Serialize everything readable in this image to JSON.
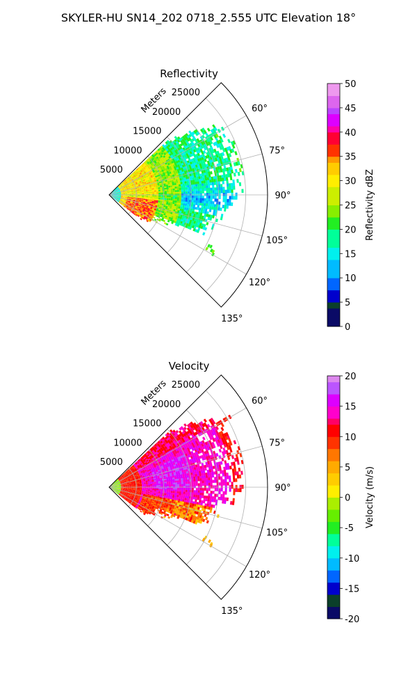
{
  "figure": {
    "title": "SKYLER-HU  SN14_202  0718_2.555 UTC Elevation 18°"
  },
  "chart_data": [
    {
      "type": "heatmap",
      "subtype": "polar-sector (radar PPI)",
      "title": "Reflectivity",
      "radial_label": "Meters",
      "radial_ticks": [
        5000,
        10000,
        15000,
        20000,
        25000
      ],
      "rlim": [
        0,
        29000
      ],
      "angle_ticks": [
        "60°",
        "75°",
        "90°",
        "105°",
        "120°",
        "135°"
      ],
      "theta_range_deg": [
        45,
        135
      ],
      "grid": true,
      "colorbar": {
        "label": "Reflectivity dBZ",
        "range": [
          0,
          50
        ],
        "ticks": [
          0,
          5,
          10,
          15,
          20,
          25,
          30,
          35,
          40,
          45,
          50
        ]
      },
      "field_summary": [
        {
          "range_m": [
            0,
            2000
          ],
          "dominant_dBZ": 15
        },
        {
          "range_m": [
            2000,
            9000
          ],
          "dominant_dBZ": 30
        },
        {
          "range_m": [
            9000,
            13000
          ],
          "dominant_dBZ": 24
        },
        {
          "range_m": [
            13000,
            22000
          ],
          "dominant_dBZ": 18
        },
        {
          "range_m": [
            22000,
            25000
          ],
          "dominant_dBZ": 19
        }
      ]
    },
    {
      "type": "heatmap",
      "subtype": "polar-sector (radar PPI)",
      "title": "Velocity",
      "radial_label": "Meters",
      "radial_ticks": [
        5000,
        10000,
        15000,
        20000,
        25000
      ],
      "rlim": [
        0,
        29000
      ],
      "angle_ticks": [
        "60°",
        "75°",
        "90°",
        "105°",
        "120°",
        "135°"
      ],
      "theta_range_deg": [
        45,
        135
      ],
      "grid": true,
      "colorbar": {
        "label": "Velocity (m/s)",
        "range": [
          -20,
          20
        ],
        "ticks": [
          -20,
          -15,
          -10,
          -5,
          0,
          5,
          10,
          15,
          20
        ]
      },
      "field_summary": [
        {
          "range_m": [
            0,
            2000
          ],
          "dominant_ms": -2
        },
        {
          "range_m": [
            2000,
            6000
          ],
          "dominant_ms": 10
        },
        {
          "range_m": [
            6000,
            22000
          ],
          "dominant_ms": 14
        },
        {
          "range_m": [
            22000,
            25000
          ],
          "dominant_ms": 11
        }
      ]
    }
  ]
}
